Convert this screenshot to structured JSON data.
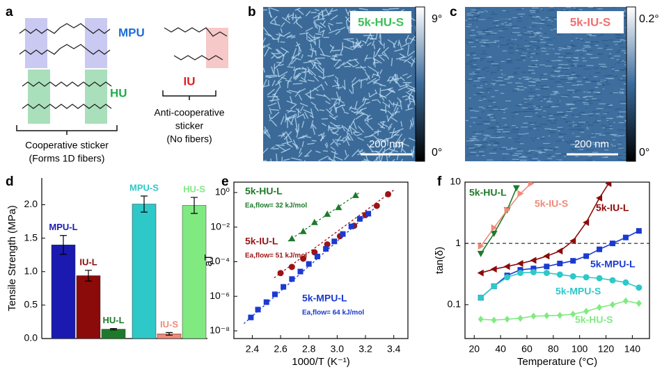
{
  "panel_labels": [
    "a",
    "b",
    "c",
    "d",
    "e",
    "f"
  ],
  "panel_a": {
    "mpu": "MPU",
    "hu": "HU",
    "iu": "IU",
    "cooperative": [
      "Cooperative sticker",
      "(Forms 1D fibers)"
    ],
    "anti_cooperative": [
      "Anti-cooperative",
      "sticker",
      "(No fibers)"
    ]
  },
  "panel_b": {
    "label": "5k-HU-S",
    "scale_bar": "200 nm",
    "colorbar_max": "9°",
    "colorbar_min": "0°"
  },
  "panel_c": {
    "label": "5k-IU-S",
    "scale_bar": "200 nm",
    "colorbar_max": "0.2°",
    "colorbar_min": "0°"
  },
  "chart_data": [
    {
      "type": "bar",
      "y_label": "Tensile Strength (MPa)",
      "categories": [
        "MPU-L",
        "IU-L",
        "HU-L",
        "MPU-S",
        "IU-S",
        "HU-S"
      ],
      "values": [
        1.4,
        0.94,
        0.14,
        2.01,
        0.07,
        1.99
      ],
      "errors": [
        0.14,
        0.08,
        0.01,
        0.12,
        0.02,
        0.12
      ],
      "colors": [
        "#1a1ab0",
        "#8b0a0a",
        "#1e7a2a",
        "#2ec8c8",
        "#f08a78",
        "#80ea80"
      ],
      "ylim": [
        0,
        2.4
      ],
      "yticks": [
        {
          "value": 0,
          "label": "0.0"
        },
        0.5,
        {
          "value": 1,
          "label": "1.0"
        },
        1.5,
        {
          "value": 2,
          "label": "2.0"
        }
      ]
    },
    {
      "type": "scatter",
      "x_label": "1000/T (K⁻¹)",
      "y_label": "aT",
      "log_y": true,
      "xlim": [
        2.27,
        3.5
      ],
      "xticks": [
        2.4,
        2.6,
        2.8,
        {
          "value": 3,
          "label": "3.0"
        },
        3.2,
        3.4
      ],
      "ylim": [
        3.6e-09,
        4
      ],
      "yticks": [
        {
          "value": 1e-08,
          "label": "10⁻⁸"
        },
        {
          "value": 1e-06,
          "label": "10⁻⁶"
        },
        {
          "value": 0.0001,
          "label": "10⁻⁴"
        },
        {
          "value": 0.01,
          "label": "10⁻²"
        },
        {
          "value": 1,
          "label": "10⁰"
        }
      ],
      "series": [
        {
          "name": "5k-HU-L",
          "annotation": "Ea,flow= 32 kJ/mol",
          "color": "#1e7a2a",
          "marker": "triangle",
          "x": [
            2.68,
            2.76,
            2.84,
            2.93,
            3.01,
            3.13
          ],
          "values": [
            0.0022,
            0.0057,
            0.019,
            0.057,
            0.14,
            0.7
          ]
        },
        {
          "name": "5k-IU-L",
          "annotation": "Ea,flow= 51 kJ/mol",
          "color": "#9b1414",
          "marker": "circle",
          "x": [
            2.6,
            2.68,
            2.76,
            2.84,
            2.93,
            3.02,
            3.12,
            3.2,
            3.28,
            3.36
          ],
          "values": [
            2.2e-05,
            5e-05,
            0.00015,
            0.00035,
            0.001,
            0.003,
            0.012,
            0.05,
            0.17,
            0.8
          ]
        },
        {
          "name": "5k-MPU-L",
          "annotation": "Ea,flow= 64 kJ/mol",
          "color": "#1a3ad0",
          "marker": "square",
          "x": [
            2.39,
            2.44,
            2.5,
            2.56,
            2.62,
            2.68,
            2.74,
            2.8,
            2.86,
            2.92,
            2.98,
            3.04,
            3.1,
            3.16,
            3.22
          ],
          "values": [
            6e-08,
            1.7e-07,
            4.6e-07,
            1.3e-06,
            3.5e-06,
            1e-05,
            2.7e-05,
            7.4e-05,
            0.0002,
            0.00055,
            0.0015,
            0.004,
            0.011,
            0.03,
            0.06
          ]
        }
      ]
    },
    {
      "type": "line",
      "x_label": "Temperature (°C)",
      "y_label": "tan(δ)",
      "log_y": true,
      "hline": 1,
      "xlim": [
        13,
        153
      ],
      "xticks": [
        20,
        40,
        60,
        80,
        100,
        120,
        140
      ],
      "ylim": [
        0.028,
        10
      ],
      "yticks": [
        0.1,
        1,
        10
      ],
      "series": [
        {
          "name": "5k-HU-L",
          "color": "#1e7a2a",
          "marker": "triangle-down",
          "x": [
            25,
            35,
            45,
            52
          ],
          "values": [
            0.68,
            1.45,
            3.5,
            8
          ]
        },
        {
          "name": "5k-IU-S",
          "color": "#f08a78",
          "marker": "triangle-right",
          "x": [
            25,
            35,
            45,
            55,
            63
          ],
          "values": [
            0.9,
            1.8,
            3.5,
            6.5,
            9.5
          ]
        },
        {
          "name": "5k-IU-L",
          "color": "#8b0a0a",
          "marker": "triangle-left",
          "x": [
            25,
            35,
            45,
            55,
            65,
            75,
            85,
            95,
            105,
            115,
            122
          ],
          "values": [
            0.33,
            0.38,
            0.42,
            0.47,
            0.53,
            0.62,
            0.75,
            1.1,
            2.2,
            5.5,
            9.5
          ]
        },
        {
          "name": "5k-MPU-L",
          "color": "#1a3ad0",
          "marker": "square",
          "x": [
            25,
            35,
            45,
            55,
            65,
            75,
            85,
            95,
            105,
            115,
            125,
            135,
            145
          ],
          "values": [
            0.13,
            0.2,
            0.3,
            0.37,
            0.39,
            0.42,
            0.47,
            0.52,
            0.62,
            0.8,
            1.0,
            1.25,
            1.6
          ]
        },
        {
          "name": "5k-MPU-S",
          "color": "#2ec8c8",
          "marker": "circle",
          "x": [
            25,
            35,
            45,
            55,
            65,
            75,
            85,
            95,
            105,
            115,
            125,
            135,
            145
          ],
          "values": [
            0.13,
            0.2,
            0.28,
            0.33,
            0.34,
            0.33,
            0.31,
            0.29,
            0.28,
            0.27,
            0.25,
            0.23,
            0.19
          ]
        },
        {
          "name": "5k-HU-S",
          "color": "#80ea80",
          "marker": "diamond",
          "x": [
            25,
            35,
            45,
            55,
            65,
            75,
            85,
            95,
            105,
            115,
            125,
            135,
            145
          ],
          "values": [
            0.058,
            0.056,
            0.058,
            0.06,
            0.065,
            0.066,
            0.067,
            0.07,
            0.078,
            0.09,
            0.1,
            0.115,
            0.105
          ]
        }
      ]
    }
  ]
}
